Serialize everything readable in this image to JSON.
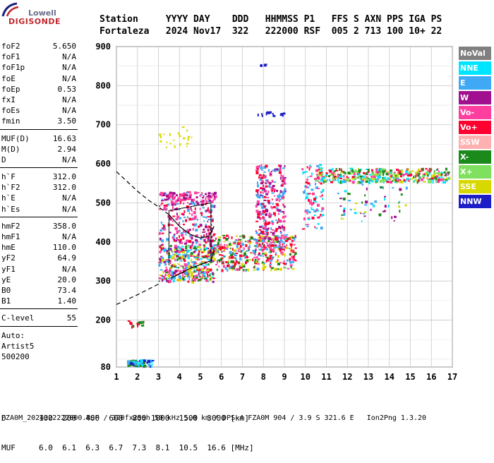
{
  "logo": {
    "top": "Lowell",
    "bottom": "DIGISONDE"
  },
  "header": {
    "labels": [
      "Station",
      "YYYY",
      "DAY",
      "DDD",
      "HHMMSS",
      "P1",
      "FFS",
      "S",
      "AXN",
      "PPS",
      "IGA",
      "PS"
    ],
    "values": [
      "Fortaleza",
      "2024",
      "Nov17",
      "322",
      "222000",
      "RSF",
      "005",
      "2",
      "713",
      "100",
      "10+",
      "22"
    ]
  },
  "params": [
    {
      "group": [
        {
          "label": "foF2",
          "value": "5.650"
        },
        {
          "label": "foF1",
          "value": "N/A"
        },
        {
          "label": "foF1p",
          "value": "N/A"
        },
        {
          "label": "foE",
          "value": "N/A"
        },
        {
          "label": "foEp",
          "value": "0.53"
        },
        {
          "label": "fxI",
          "value": "N/A"
        },
        {
          "label": "foEs",
          "value": "N/A"
        },
        {
          "label": "fmin",
          "value": "3.50"
        }
      ]
    },
    {
      "group": [
        {
          "label": "MUF(D)",
          "value": "16.63"
        },
        {
          "label": "M(D)",
          "value": "2.94"
        },
        {
          "label": "D",
          "value": "N/A"
        }
      ]
    },
    {
      "group": [
        {
          "label": "h`F",
          "value": "312.0"
        },
        {
          "label": "h`F2",
          "value": "312.0"
        },
        {
          "label": "h`E",
          "value": "N/A"
        },
        {
          "label": "h`Es",
          "value": "N/A"
        }
      ]
    },
    {
      "group": [
        {
          "label": "hmF2",
          "value": "358.0"
        },
        {
          "label": "hmF1",
          "value": "N/A"
        },
        {
          "label": "hmE",
          "value": "110.0"
        },
        {
          "label": "yF2",
          "value": "64.9"
        },
        {
          "label": "yF1",
          "value": "N/A"
        },
        {
          "label": "yE",
          "value": "20.0"
        },
        {
          "label": "B0",
          "value": "73.4"
        },
        {
          "label": "B1",
          "value": "1.40"
        }
      ]
    },
    {
      "group": [
        {
          "label": "C-level",
          "value": "55"
        }
      ]
    }
  ],
  "autoscaling": [
    "Auto:",
    "Artist5",
    "500200"
  ],
  "legend": [
    {
      "label": "NoVal",
      "color": "#808080"
    },
    {
      "label": "NNE",
      "color": "#00e5ff"
    },
    {
      "label": "E",
      "color": "#3fa9f5"
    },
    {
      "label": "W",
      "color": "#a0108f"
    },
    {
      "label": "Vo-",
      "color": "#ff3f9f"
    },
    {
      "label": "Vo+",
      "color": "#ff0030"
    },
    {
      "label": "SSW",
      "color": "#ffb0b0"
    },
    {
      "label": "X-",
      "color": "#1a8a1a"
    },
    {
      "label": "X+",
      "color": "#7fdf5f"
    },
    {
      "label": "SSE",
      "color": "#d8d800"
    },
    {
      "label": "NNW",
      "color": "#1e1ec8"
    }
  ],
  "distance_row": {
    "label": "D",
    "values": [
      "100",
      "200",
      "400",
      "600",
      "800",
      "1000",
      "1500",
      "3000"
    ],
    "unit": "[km]"
  },
  "muf_row": {
    "label": "MUF",
    "values": [
      "6.0",
      "6.1",
      "6.3",
      "6.7",
      "7.3",
      "8.1",
      "10.5",
      "16.6"
    ],
    "unit": "[MHz]"
  },
  "footer": "FZA0M_2024322222000.RSF / 320fx256h 50 kHz 5.0 km / DPS-4 FZA0M 904 / 3.9 S 321.6 E   Ion2Png 1.3.20",
  "chart_data": {
    "type": "scatter",
    "title": "",
    "xlabel": "",
    "ylabel": "",
    "xlim": [
      1,
      17
    ],
    "ylim": [
      80,
      900
    ],
    "x_ticks": [
      1,
      2,
      3,
      4,
      5,
      6,
      7,
      8,
      9,
      10,
      11,
      12,
      13,
      14,
      15,
      16,
      17
    ],
    "y_ticks": [
      80,
      200,
      300,
      400,
      500,
      600,
      700,
      800,
      900
    ],
    "grid": true,
    "legend_position": "right",
    "profile_curve": {
      "name": "",
      "points": [
        [
          1.0,
          580
        ],
        [
          1.5,
          555
        ],
        [
          2.0,
          530
        ],
        [
          2.5,
          508
        ],
        [
          3.0,
          490
        ],
        [
          3.5,
          470
        ],
        [
          4.0,
          440
        ],
        [
          4.5,
          420
        ],
        [
          5.0,
          410
        ],
        [
          5.4,
          415
        ],
        [
          5.65,
          440
        ]
      ]
    },
    "trace_curve": {
      "points": [
        [
          1.0,
          240
        ],
        [
          2.0,
          265
        ],
        [
          3.0,
          292
        ],
        [
          3.6,
          308
        ],
        [
          4.0,
          318
        ],
        [
          4.5,
          332
        ],
        [
          5.0,
          342
        ],
        [
          5.5,
          352
        ],
        [
          5.65,
          380
        ]
      ]
    },
    "extrapolation_solid_from": 3.5,
    "profile_box": {
      "x": [
        3.5,
        5.5
      ],
      "y_low": [
        340,
        355
      ],
      "y_high": [
        480,
        500
      ]
    },
    "echo_clusters": [
      {
        "x": [
          3.0,
          5.6
        ],
        "y": [
          300,
          395
        ],
        "colors": [
          "#ff0030",
          "#1a8a1a",
          "#3fa9f5",
          "#d8d800",
          "#00e5ff",
          "#a0108f",
          "#ff3f9f"
        ],
        "n": 420
      },
      {
        "x": [
          3.0,
          5.6
        ],
        "y": [
          395,
          530
        ],
        "colors": [
          "#ff0030",
          "#3fa9f5",
          "#ff3f9f",
          "#a0108f"
        ],
        "n": 260
      },
      {
        "x": [
          3.0,
          5.7
        ],
        "y": [
          505,
          530
        ],
        "colors": [
          "#a0108f",
          "#ff3f9f"
        ],
        "n": 80
      },
      {
        "x": [
          5.6,
          9.5
        ],
        "y": [
          330,
          420
        ],
        "colors": [
          "#ff0030",
          "#d8d800",
          "#1a8a1a",
          "#ff3f9f",
          "#3fa9f5"
        ],
        "n": 380
      },
      {
        "x": [
          7.6,
          9.0
        ],
        "y": [
          380,
          600
        ],
        "colors": [
          "#ff0030",
          "#ff3f9f",
          "#a0108f",
          "#3fa9f5"
        ],
        "n": 330
      },
      {
        "x": [
          9.8,
          10.8
        ],
        "y": [
          430,
          600
        ],
        "colors": [
          "#ff0030",
          "#3fa9f5",
          "#ff3f9f",
          "#00e5ff"
        ],
        "n": 90
      },
      {
        "x": [
          10.5,
          16.8
        ],
        "y": [
          555,
          590
        ],
        "colors": [
          "#ff0030",
          "#ff3f9f",
          "#1a8a1a",
          "#d8d800",
          "#7fdf5f",
          "#00e5ff"
        ],
        "n": 420
      },
      {
        "x": [
          11.5,
          14.8
        ],
        "y": [
          455,
          560
        ],
        "colors": [
          "#3fa9f5",
          "#00e5ff",
          "#a0108f",
          "#1a8a1a",
          "#d8d800"
        ],
        "n": 60
      },
      {
        "x": [
          1.5,
          2.7
        ],
        "y": [
          85,
          100
        ],
        "colors": [
          "#3fa9f5",
          "#00e5ff",
          "#1a8a1a",
          "#1e1ec8"
        ],
        "n": 60
      },
      {
        "x": [
          1.5,
          2.3
        ],
        "y": [
          185,
          200
        ],
        "colors": [
          "#ff0030",
          "#1a8a1a"
        ],
        "n": 16
      },
      {
        "x": [
          3.0,
          4.6
        ],
        "y": [
          640,
          700
        ],
        "colors": [
          "#d8d800"
        ],
        "n": 22
      },
      {
        "x": [
          7.7,
          9.1
        ],
        "y": [
          725,
          735
        ],
        "colors": [
          "#1e1ec8"
        ],
        "n": 14
      },
      {
        "x": [
          7.8,
          8.1
        ],
        "y": [
          852,
          856
        ],
        "colors": [
          "#1e1ec8"
        ],
        "n": 5
      }
    ]
  }
}
